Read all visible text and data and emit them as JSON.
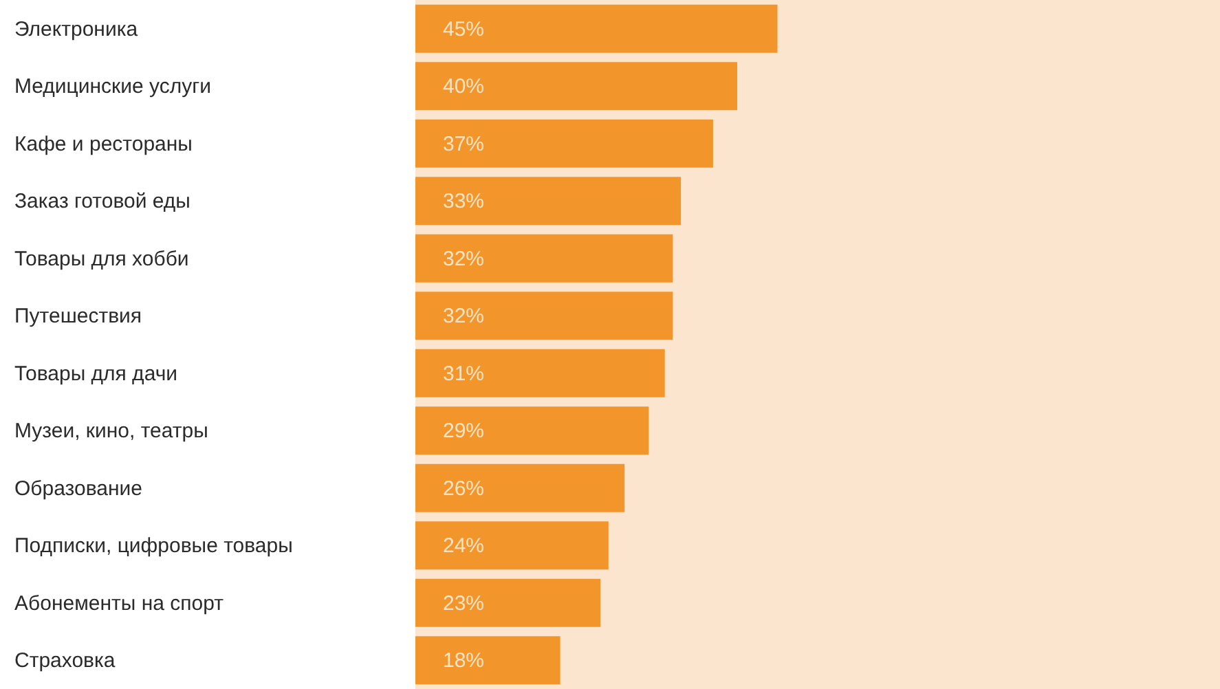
{
  "chart_data": {
    "type": "bar",
    "orientation": "horizontal",
    "categories": [
      "Электроника",
      "Медицинские услуги",
      "Кафе и рестораны",
      "Заказ готовой еды",
      "Товары для хобби",
      "Путешествия",
      "Товары для дачи",
      "Музеи, кино, театры",
      "Образование",
      "Подписки, цифровые товары",
      "Абонементы на спорт",
      "Страховка"
    ],
    "values": [
      45,
      40,
      37,
      33,
      32,
      32,
      31,
      29,
      26,
      24,
      23,
      18
    ],
    "value_labels": [
      "45%",
      "40%",
      "37%",
      "33%",
      "32%",
      "32%",
      "31%",
      "29%",
      "26%",
      "24%",
      "23%",
      "18%"
    ],
    "color": "#f2962c",
    "xlim": [
      0,
      100
    ],
    "grid": false,
    "tick_labels": "y"
  }
}
